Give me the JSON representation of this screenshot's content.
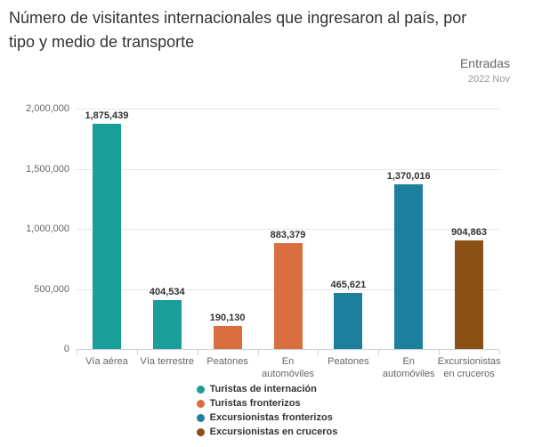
{
  "header": {
    "title": "Número de visitantes internacionales que ingresaron al país, por\ntipo y medio de transporte",
    "right_label": "Entradas",
    "period": "2022 Nov"
  },
  "chart_data": {
    "type": "bar",
    "title": "Número de visitantes internacionales que ingresaron al país, por tipo y medio de transporte",
    "subtitle": "Entradas 2022 Nov",
    "categories": [
      "Vía aérea",
      "Vía terrestre",
      "Peatones",
      "En automóviles",
      "Peatones",
      "En automóviles",
      "Excursionistas en cruceros"
    ],
    "xtick_display": [
      "Vía aérea",
      "Vía terrestre",
      "Peatones",
      "En\nautomóviles",
      "Peatones",
      "En\nautomóviles",
      "Excursionistas\nen cruceros"
    ],
    "values": [
      1875439,
      404534,
      190130,
      883379,
      465621,
      1370016,
      904863
    ],
    "value_labels": [
      "1,875,439",
      "404,534",
      "190,130",
      "883,379",
      "465,621",
      "1,370,016",
      "904,863"
    ],
    "bar_series": [
      "Turistas de internación",
      "Turistas de internación",
      "Turistas fronterizos",
      "Turistas fronterizos",
      "Excursionistas fronterizos",
      "Excursionistas fronterizos",
      "Excursionistas en cruceros"
    ],
    "bar_colors": [
      "#1A9E9A",
      "#1A9E9A",
      "#D96E3E",
      "#D96E3E",
      "#1C7F9E",
      "#1C7F9E",
      "#8B5013"
    ],
    "ylim": [
      0,
      2000000
    ],
    "yticks": [
      0,
      500000,
      1000000,
      1500000,
      2000000
    ],
    "ytick_labels": [
      "0",
      "500,000",
      "1,000,000",
      "1,500,000",
      "2,000,000"
    ],
    "xlabel": "",
    "ylabel": "",
    "grid": true,
    "legend_position": "bottom-center",
    "legend": [
      {
        "label": "Turistas de internación",
        "color": "#1A9E9A"
      },
      {
        "label": "Turistas fronterizos",
        "color": "#D96E3E"
      },
      {
        "label": "Excursionistas fronterizos",
        "color": "#1C7F9E"
      },
      {
        "label": "Excursionistas en cruceros",
        "color": "#8B5013"
      }
    ]
  }
}
